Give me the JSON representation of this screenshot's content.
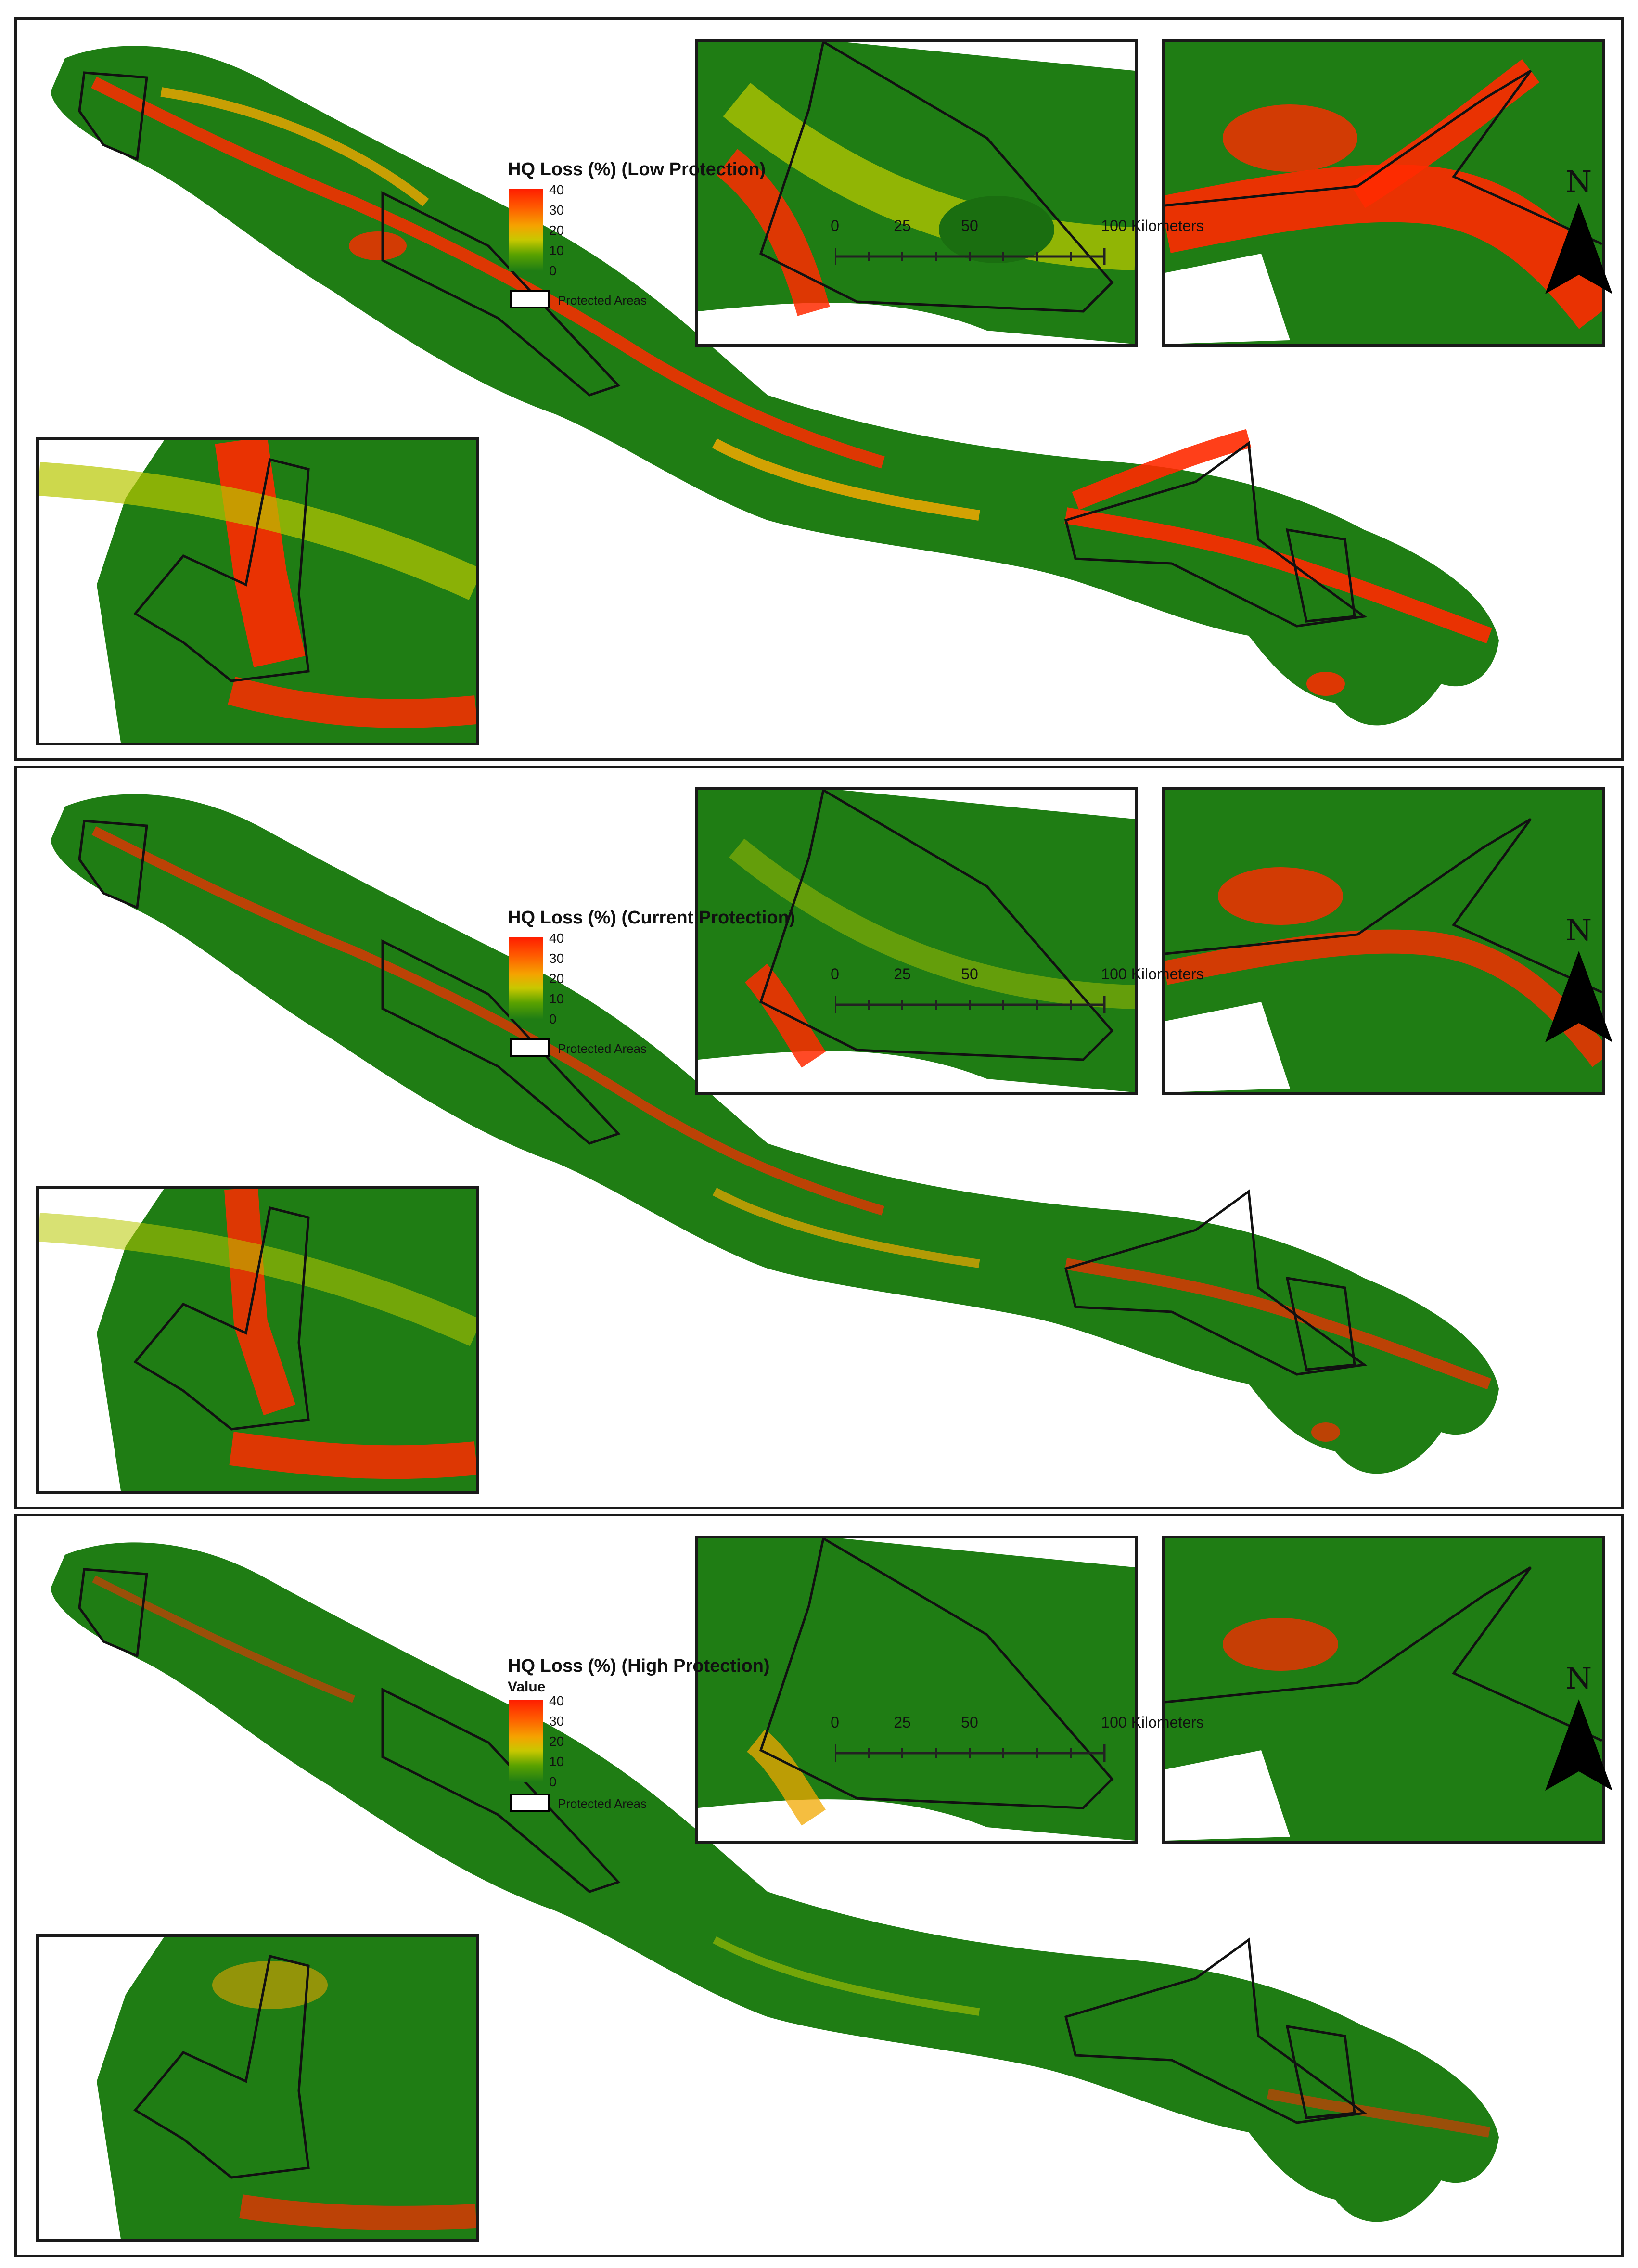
{
  "panels": [
    {
      "id": "low",
      "legend_title": "HQ Loss (%) (Low Protection)",
      "legend_subtitle": "",
      "intensity": 1.0
    },
    {
      "id": "current",
      "legend_title": "HQ Loss (%) (Current Protection)",
      "legend_subtitle": "",
      "intensity": 0.6
    },
    {
      "id": "high",
      "legend_title": "HQ Loss (%) (High Protection)",
      "legend_subtitle": "Value",
      "intensity": 0.3
    }
  ],
  "legend": {
    "ticks": [
      "40",
      "30",
      "20",
      "10",
      "0"
    ],
    "protected_areas_label": "Protected Areas",
    "colors": {
      "high": "#ff1e00",
      "mid": "#f5a300",
      "low": "#1f7d14"
    }
  },
  "scale_bar": {
    "labels": [
      "0",
      "25",
      "50",
      "100 Kilometers"
    ]
  },
  "north_arrow": {
    "letter": "N"
  },
  "colors": {
    "land": "#1f7d14",
    "land_dark": "#17660f",
    "loss_high": "#ff2a00",
    "loss_mid": "#f2a800",
    "loss_low": "#b8c800",
    "boundary": "#111111"
  }
}
